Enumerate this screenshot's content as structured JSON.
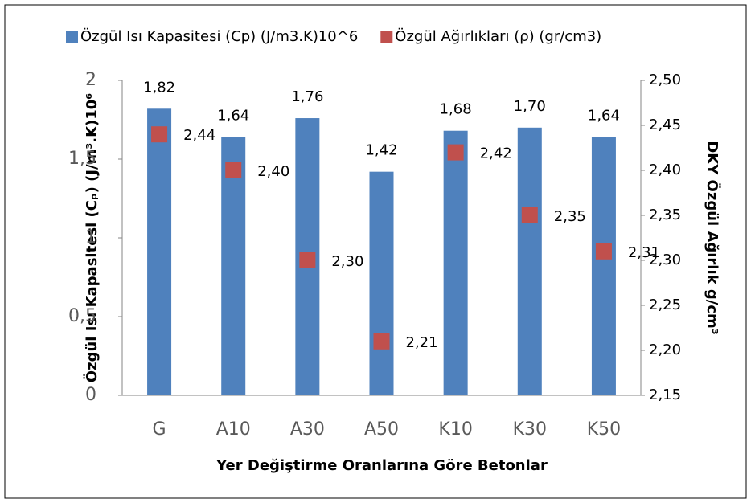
{
  "chart_data": {
    "type": "bar",
    "xlabel": "Yer Değiştirme Oranlarına Göre Betonlar",
    "ylabel": "Özgül Isı Kapasitesi (Cₚ) (J/m³.K)10⁶",
    "y2label": "DKY Özgül Ağırlık g/cm³",
    "categories": [
      "G",
      "A10",
      "A30",
      "A50",
      "K10",
      "K30",
      "K50"
    ],
    "series": [
      {
        "name": "Özgül Isı Kapasitesi (Cp) (J/m3.K)10^6",
        "type": "bar",
        "color": "#4f81bd",
        "values": [
          1.82,
          1.64,
          1.76,
          1.42,
          1.68,
          1.7,
          1.64
        ],
        "value_labels": [
          "1,82",
          "1,64",
          "1,76",
          "1,42",
          "1,68",
          "1,70",
          "1,64"
        ]
      },
      {
        "name": "Özgül Ağırlıkları (ρ) (gr/cm3)",
        "type": "scatter",
        "axis": "y2",
        "color": "#c0504d",
        "values": [
          2.44,
          2.4,
          2.3,
          2.21,
          2.42,
          2.35,
          2.31
        ],
        "value_labels": [
          "2,44",
          "2,40",
          "2,30",
          "2,21",
          "2,42",
          "2,35",
          "2,31"
        ]
      }
    ],
    "ylim": [
      0,
      2
    ],
    "yticks": [
      0,
      {
        "value": 0.5,
        "label": "0,5"
      },
      1,
      {
        "value": 1.5,
        "label": "1,5"
      },
      2
    ],
    "y2lim": [
      2.15,
      2.5
    ],
    "y2ticks": [
      {
        "value": 2.15,
        "label": "2,15"
      },
      {
        "value": 2.2,
        "label": "2,20"
      },
      {
        "value": 2.25,
        "label": "2,25"
      },
      {
        "value": 2.3,
        "label": "2,30"
      },
      {
        "value": 2.35,
        "label": "2,35"
      },
      {
        "value": 2.4,
        "label": "2,40"
      },
      {
        "value": 2.45,
        "label": "2,45"
      },
      {
        "value": 2.5,
        "label": "2,50"
      }
    ],
    "legend": "top"
  }
}
